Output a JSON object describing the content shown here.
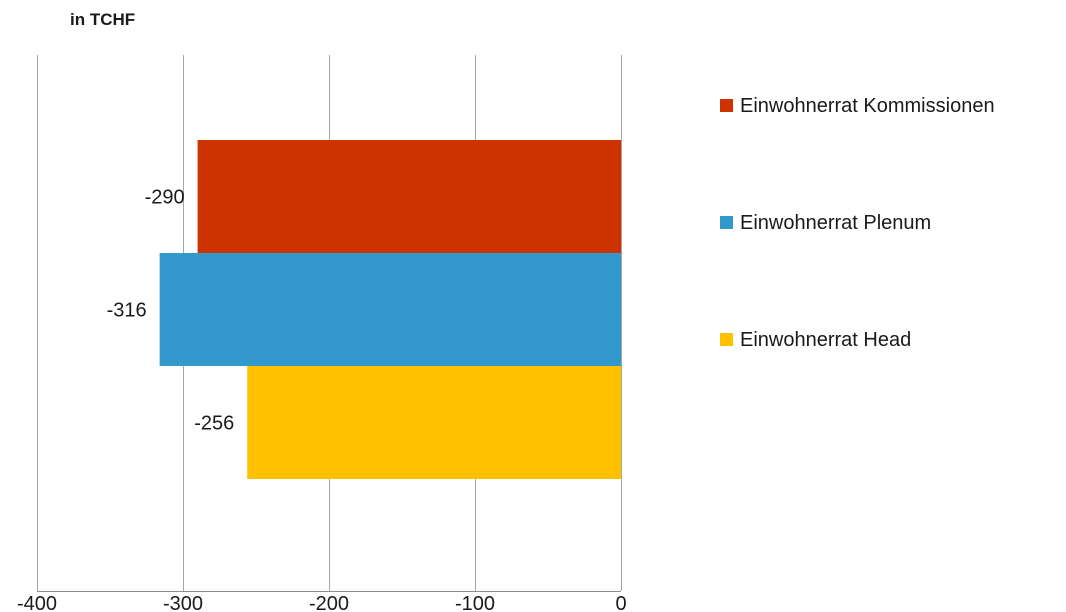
{
  "chart_data": {
    "type": "bar",
    "orientation": "horizontal",
    "unit_label": "in TCHF",
    "xlim": [
      -400,
      0
    ],
    "xticks": [
      -400,
      -300,
      -200,
      -100,
      0
    ],
    "xtick_labels": [
      "-400",
      "-300",
      "-200",
      "-100",
      "0"
    ],
    "grid": true,
    "legend_position": "right",
    "series": [
      {
        "name": "Einwohnerrat Kommissionen",
        "value": -290,
        "label": "-290",
        "color": "#cc3300"
      },
      {
        "name": "Einwohnerrat Plenum",
        "value": -316,
        "label": "-316",
        "color": "#3399cc"
      },
      {
        "name": "Einwohnerrat Head",
        "value": -256,
        "label": "-256",
        "color": "#ffc000"
      }
    ]
  }
}
